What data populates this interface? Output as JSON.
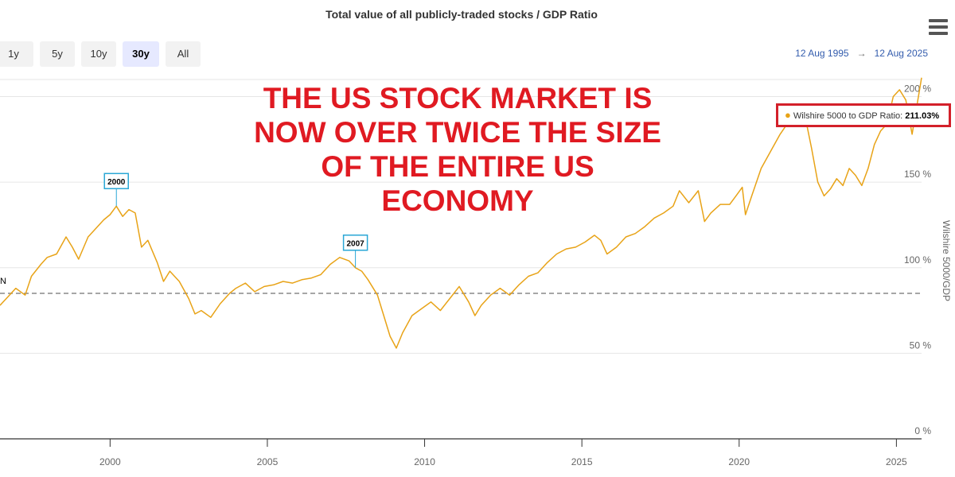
{
  "header": {
    "title": "Total value of all publicly-traded stocks / GDP Ratio"
  },
  "range_selector": {
    "buttons": [
      {
        "label": "1y",
        "active": false
      },
      {
        "label": "5y",
        "active": false
      },
      {
        "label": "10y",
        "active": false
      },
      {
        "label": "30y",
        "active": true
      },
      {
        "label": "All",
        "active": false
      }
    ],
    "from": "12 Aug 1995",
    "arrow": "→",
    "to": "12 Aug 2025"
  },
  "headline": {
    "lines": [
      "THE US STOCK MARKET IS",
      "NOW OVER TWICE THE SIZE",
      "OF THE ENTIRE US",
      "ECONOMY"
    ]
  },
  "tooltip": {
    "series_label": "Wilshire 5000 to GDP Ratio: ",
    "value_label": "211.03%"
  },
  "colors": {
    "series": "#e8a317",
    "flag_border": "#2aa7d6",
    "headline": "#e01a22",
    "highlight_box": "#d3202a"
  },
  "chart_data": {
    "type": "line",
    "title": "Total value of all publicly-traded stocks / GDP Ratio",
    "ylabel": "Wilshire 5000/GDP",
    "xlabel": "",
    "xlim": [
      1996.5,
      2025.8
    ],
    "ylim": [
      0,
      210
    ],
    "x_ticks": [
      2000,
      2005,
      2010,
      2015,
      2020,
      2025
    ],
    "x_tick_labels": [
      "2000",
      "2005",
      "2010",
      "2015",
      "2020",
      "2025"
    ],
    "y_ticks": [
      0,
      50,
      100,
      150,
      200
    ],
    "y_tick_labels": [
      "0 %",
      "50 %",
      "100 %",
      "150 %",
      "200 %"
    ],
    "grid": true,
    "series": [
      {
        "name": "Wilshire 5000 to GDP Ratio",
        "x": [
          1996.5,
          1996.8,
          1997.0,
          1997.3,
          1997.5,
          1997.8,
          1998.0,
          1998.3,
          1998.6,
          1998.8,
          1999.0,
          1999.3,
          1999.6,
          1999.8,
          2000.0,
          2000.2,
          2000.4,
          2000.6,
          2000.8,
          2001.0,
          2001.2,
          2001.5,
          2001.7,
          2001.9,
          2002.2,
          2002.5,
          2002.7,
          2002.9,
          2003.2,
          2003.5,
          2003.8,
          2004.0,
          2004.3,
          2004.6,
          2004.9,
          2005.2,
          2005.5,
          2005.8,
          2006.1,
          2006.4,
          2006.7,
          2007.0,
          2007.3,
          2007.6,
          2007.8,
          2008.0,
          2008.2,
          2008.5,
          2008.7,
          2008.9,
          2009.1,
          2009.3,
          2009.6,
          2009.9,
          2010.2,
          2010.5,
          2010.8,
          2011.1,
          2011.4,
          2011.6,
          2011.8,
          2012.1,
          2012.4,
          2012.7,
          2013.0,
          2013.3,
          2013.6,
          2013.9,
          2014.2,
          2014.5,
          2014.8,
          2015.1,
          2015.4,
          2015.6,
          2015.8,
          2016.1,
          2016.4,
          2016.7,
          2017.0,
          2017.3,
          2017.6,
          2017.9,
          2018.1,
          2018.4,
          2018.7,
          2018.9,
          2019.1,
          2019.4,
          2019.7,
          2019.9,
          2020.1,
          2020.2,
          2020.4,
          2020.7,
          2021.0,
          2021.3,
          2021.6,
          2021.9,
          2022.1,
          2022.3,
          2022.5,
          2022.7,
          2022.9,
          2023.1,
          2023.3,
          2023.5,
          2023.7,
          2023.9,
          2024.1,
          2024.3,
          2024.5,
          2024.7,
          2024.9,
          2025.1,
          2025.3,
          2025.5,
          2025.8
        ],
        "y": [
          78,
          84,
          88,
          84,
          95,
          102,
          106,
          108,
          118,
          112,
          105,
          118,
          124,
          128,
          131,
          136,
          130,
          134,
          132,
          112,
          116,
          103,
          92,
          98,
          92,
          82,
          73,
          75,
          71,
          79,
          85,
          88,
          91,
          86,
          89,
          90,
          92,
          91,
          93,
          94,
          96,
          102,
          106,
          104,
          100,
          98,
          93,
          84,
          72,
          60,
          53,
          62,
          72,
          76,
          80,
          75,
          82,
          89,
          80,
          72,
          78,
          84,
          88,
          84,
          90,
          95,
          97,
          103,
          108,
          111,
          112,
          115,
          119,
          116,
          108,
          112,
          118,
          120,
          124,
          129,
          132,
          136,
          145,
          138,
          145,
          127,
          132,
          137,
          137,
          142,
          147,
          131,
          142,
          158,
          168,
          178,
          186,
          195,
          188,
          170,
          150,
          142,
          146,
          152,
          148,
          158,
          154,
          148,
          158,
          172,
          180,
          184,
          200,
          204,
          198,
          178,
          211
        ]
      }
    ],
    "reference_line": {
      "y": 85,
      "label": "N",
      "style": "dashed"
    },
    "flags": [
      {
        "x": 2000.2,
        "y": 136,
        "label": "2000"
      },
      {
        "x": 2007.8,
        "y": 100,
        "label": "2007"
      }
    ]
  }
}
